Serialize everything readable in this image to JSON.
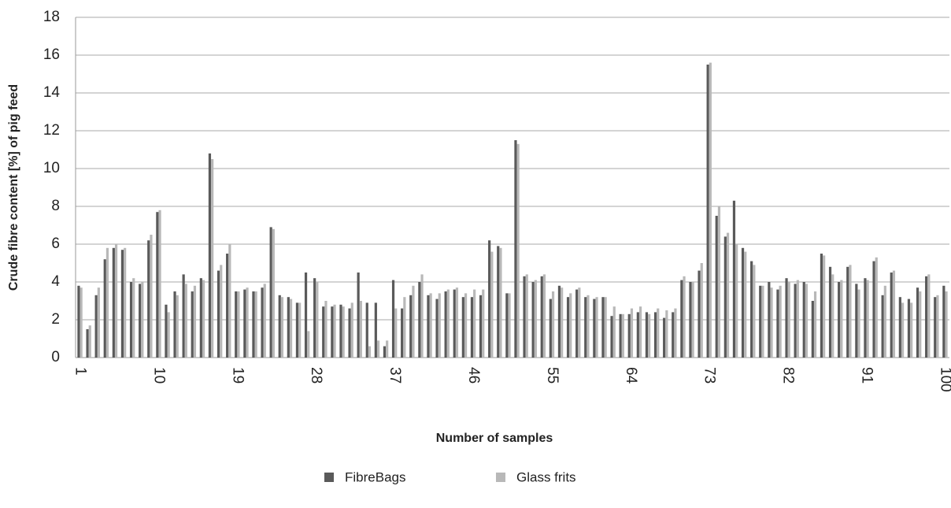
{
  "chart_data": {
    "type": "bar",
    "ylabel": "Crude fibre content [%] of pig feed",
    "xlabel": "Number of samples",
    "categories": [
      "1",
      null,
      null,
      null,
      null,
      null,
      null,
      null,
      null,
      "10",
      null,
      null,
      null,
      null,
      null,
      null,
      null,
      null,
      "19",
      null,
      null,
      null,
      null,
      null,
      null,
      null,
      null,
      "28",
      null,
      null,
      null,
      null,
      null,
      null,
      null,
      null,
      "37",
      null,
      null,
      null,
      null,
      null,
      null,
      null,
      null,
      "46",
      null,
      null,
      null,
      null,
      null,
      null,
      null,
      null,
      "55",
      null,
      null,
      null,
      null,
      null,
      null,
      null,
      null,
      "64",
      null,
      null,
      null,
      null,
      null,
      null,
      null,
      null,
      "73",
      null,
      null,
      null,
      null,
      null,
      null,
      null,
      null,
      "82",
      null,
      null,
      null,
      null,
      null,
      null,
      null,
      null,
      "91",
      null,
      null,
      null,
      null,
      null,
      null,
      null,
      null,
      "100"
    ],
    "series": [
      {
        "name": "FibreBags",
        "color": "#5a5a5a",
        "values": [
          3.8,
          1.5,
          3.3,
          5.2,
          5.8,
          5.7,
          4.0,
          3.9,
          6.2,
          7.7,
          2.8,
          3.5,
          4.4,
          3.5,
          4.2,
          10.8,
          4.6,
          5.5,
          3.5,
          3.6,
          3.5,
          3.7,
          6.9,
          3.3,
          3.2,
          2.9,
          4.5,
          4.2,
          2.7,
          2.7,
          2.8,
          2.6,
          4.5,
          2.9,
          2.9,
          0.6,
          4.1,
          2.6,
          3.3,
          4.0,
          3.3,
          3.1,
          3.5,
          3.6,
          3.2,
          3.2,
          3.3,
          6.2,
          5.9,
          3.4,
          11.5,
          4.3,
          4.0,
          4.3,
          3.1,
          3.8,
          3.2,
          3.6,
          3.2,
          3.1,
          3.2,
          2.2,
          2.3,
          2.3,
          2.4,
          2.4,
          2.4,
          2.1,
          2.4,
          4.1,
          4.0,
          4.6,
          15.5,
          7.5,
          6.4,
          8.3,
          5.8,
          5.1,
          3.8,
          4.0,
          3.6,
          4.2,
          3.9,
          4.0,
          3.0,
          5.5,
          4.8,
          4.0,
          4.8,
          3.9,
          4.2,
          5.1,
          3.3,
          4.5,
          3.2,
          3.1,
          3.7,
          4.3,
          3.2,
          3.8
        ]
      },
      {
        "name": "Glass frits",
        "color": "#b8b8b8",
        "values": [
          3.7,
          1.7,
          3.7,
          5.8,
          6.0,
          5.8,
          4.2,
          4.0,
          6.5,
          7.8,
          2.4,
          3.3,
          3.9,
          3.8,
          4.1,
          10.5,
          4.9,
          6.0,
          3.5,
          3.7,
          3.5,
          3.9,
          6.8,
          3.2,
          3.1,
          2.9,
          1.4,
          4.0,
          3.0,
          2.8,
          2.7,
          2.9,
          3.0,
          0.6,
          0.9,
          0.9,
          2.6,
          3.2,
          3.8,
          4.4,
          3.4,
          3.4,
          3.6,
          3.7,
          3.4,
          3.6,
          3.6,
          5.6,
          5.8,
          3.4,
          11.3,
          4.4,
          4.1,
          4.4,
          3.5,
          3.7,
          3.4,
          3.7,
          3.3,
          3.2,
          3.2,
          2.7,
          2.3,
          2.6,
          2.7,
          2.3,
          2.6,
          2.5,
          2.6,
          4.3,
          4.0,
          5.0,
          15.6,
          8.0,
          6.6,
          6.0,
          5.6,
          4.9,
          3.8,
          3.7,
          3.8,
          4.0,
          4.1,
          3.9,
          3.5,
          5.4,
          4.4,
          4.1,
          4.9,
          3.6,
          4.1,
          5.3,
          3.8,
          4.6,
          2.9,
          2.9,
          3.5,
          4.4,
          3.3,
          3.5
        ]
      }
    ],
    "ylim": [
      0,
      18
    ],
    "yticks": [
      0,
      2,
      4,
      6,
      8,
      10,
      12,
      14,
      16,
      18
    ],
    "grid": true
  }
}
